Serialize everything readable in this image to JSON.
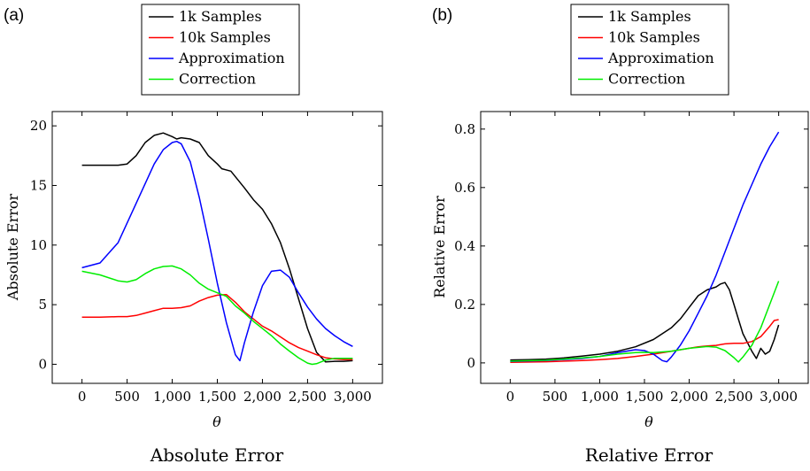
{
  "chart_data": [
    {
      "panel_label": "(a)",
      "type": "line",
      "caption": "Absolute Error",
      "xlabel": "θ",
      "ylabel": "Absolute Error",
      "xlim": [
        -330,
        3330
      ],
      "ylim": [
        -1.6,
        21.2
      ],
      "xticks": [
        0,
        500,
        1000,
        1500,
        2000,
        2500,
        3000
      ],
      "xtick_labels": [
        "0",
        "500",
        "1,000",
        "1,500",
        "2,000",
        "2,500",
        "3,000"
      ],
      "yticks": [
        0,
        5,
        10,
        15,
        20
      ],
      "ytick_labels": [
        "0",
        "5",
        "10",
        "15",
        "20"
      ],
      "legend": "top-center",
      "grid": false,
      "series": [
        {
          "name": "1k Samples",
          "color": "#000000",
          "x": [
            0,
            200,
            400,
            500,
            600,
            700,
            800,
            900,
            1000,
            1050,
            1100,
            1200,
            1300,
            1400,
            1500,
            1550,
            1650,
            1800,
            1900,
            2000,
            2100,
            2200,
            2300,
            2400,
            2500,
            2600,
            2700,
            2800,
            2900,
            3000
          ],
          "y": [
            16.7,
            16.7,
            16.7,
            16.8,
            17.5,
            18.6,
            19.2,
            19.4,
            19.1,
            18.9,
            19.0,
            18.9,
            18.6,
            17.5,
            16.8,
            16.4,
            16.2,
            14.8,
            13.8,
            13.0,
            11.8,
            10.2,
            8.0,
            5.5,
            3.0,
            1.0,
            0.2,
            0.25,
            0.25,
            0.3
          ]
        },
        {
          "name": "10k Samples",
          "color": "#ff0000",
          "x": [
            0,
            200,
            400,
            500,
            600,
            700,
            800,
            900,
            1000,
            1100,
            1200,
            1300,
            1400,
            1500,
            1600,
            1700,
            1800,
            1900,
            2000,
            2100,
            2200,
            2300,
            2400,
            2500,
            2600,
            2700,
            2800,
            2900,
            3000
          ],
          "y": [
            3.95,
            3.95,
            4.0,
            4.0,
            4.1,
            4.3,
            4.5,
            4.7,
            4.7,
            4.75,
            4.9,
            5.3,
            5.6,
            5.8,
            5.85,
            5.2,
            4.4,
            3.8,
            3.2,
            2.8,
            2.3,
            1.8,
            1.4,
            1.1,
            0.8,
            0.55,
            0.45,
            0.4,
            0.4
          ]
        },
        {
          "name": "Approximation",
          "color": "#0000ff",
          "x": [
            0,
            200,
            400,
            600,
            800,
            900,
            1000,
            1050,
            1100,
            1200,
            1300,
            1400,
            1500,
            1600,
            1700,
            1750,
            1800,
            1900,
            2000,
            2100,
            2200,
            2300,
            2400,
            2500,
            2600,
            2700,
            2800,
            2900,
            3000
          ],
          "y": [
            8.1,
            8.5,
            10.2,
            13.5,
            16.8,
            18.0,
            18.6,
            18.7,
            18.5,
            17.0,
            14.0,
            10.5,
            6.8,
            3.5,
            0.8,
            0.3,
            1.8,
            4.4,
            6.6,
            7.8,
            7.9,
            7.3,
            6.0,
            4.8,
            3.8,
            3.0,
            2.4,
            1.9,
            1.5
          ]
        },
        {
          "name": "Correction",
          "color": "#00ee00",
          "x": [
            0,
            200,
            400,
            500,
            600,
            700,
            800,
            900,
            1000,
            1100,
            1200,
            1300,
            1400,
            1500,
            1600,
            1700,
            1800,
            1900,
            2000,
            2100,
            2200,
            2300,
            2400,
            2500,
            2550,
            2600,
            2700,
            2800,
            2900,
            3000
          ],
          "y": [
            7.8,
            7.5,
            7.0,
            6.9,
            7.1,
            7.6,
            8.0,
            8.2,
            8.25,
            8.0,
            7.5,
            6.8,
            6.3,
            6.0,
            5.7,
            4.9,
            4.3,
            3.6,
            3.0,
            2.4,
            1.7,
            1.1,
            0.55,
            0.1,
            0.0,
            0.05,
            0.35,
            0.5,
            0.5,
            0.5
          ]
        }
      ]
    },
    {
      "panel_label": "(b)",
      "type": "line",
      "caption": "Relative Error",
      "xlabel": "θ",
      "ylabel": "Relative Error",
      "xlim": [
        -330,
        3330
      ],
      "ylim": [
        -0.07,
        0.86
      ],
      "xticks": [
        0,
        500,
        1000,
        1500,
        2000,
        2500,
        3000
      ],
      "xtick_labels": [
        "0",
        "500",
        "1,000",
        "1,500",
        "2,000",
        "2,500",
        "3,000"
      ],
      "yticks": [
        0,
        0.2,
        0.4,
        0.6,
        0.8
      ],
      "ytick_labels": [
        "0",
        "0.2",
        "0.4",
        "0.6",
        "0.8"
      ],
      "legend": "top-center",
      "grid": false,
      "series": [
        {
          "name": "1k Samples",
          "color": "#000000",
          "x": [
            0,
            200,
            400,
            600,
            800,
            1000,
            1200,
            1400,
            1600,
            1800,
            1900,
            2000,
            2100,
            2200,
            2300,
            2350,
            2400,
            2450,
            2500,
            2550,
            2600,
            2650,
            2700,
            2750,
            2800,
            2850,
            2900,
            2950,
            3000
          ],
          "y": [
            0.01,
            0.011,
            0.013,
            0.017,
            0.023,
            0.03,
            0.04,
            0.055,
            0.08,
            0.12,
            0.15,
            0.19,
            0.23,
            0.25,
            0.26,
            0.27,
            0.275,
            0.25,
            0.2,
            0.15,
            0.1,
            0.07,
            0.04,
            0.015,
            0.05,
            0.03,
            0.04,
            0.08,
            0.13
          ]
        },
        {
          "name": "10k Samples",
          "color": "#ff0000",
          "x": [
            0,
            400,
            800,
            1000,
            1200,
            1400,
            1600,
            1800,
            2000,
            2100,
            2200,
            2300,
            2400,
            2500,
            2600,
            2700,
            2800,
            2900,
            2950,
            3000
          ],
          "y": [
            0.002,
            0.004,
            0.008,
            0.011,
            0.015,
            0.022,
            0.03,
            0.04,
            0.05,
            0.055,
            0.058,
            0.06,
            0.065,
            0.067,
            0.067,
            0.073,
            0.09,
            0.125,
            0.145,
            0.148
          ]
        },
        {
          "name": "Approximation",
          "color": "#0000ff",
          "x": [
            0,
            400,
            800,
            1000,
            1200,
            1400,
            1500,
            1600,
            1700,
            1750,
            1800,
            1900,
            2000,
            2100,
            2200,
            2300,
            2400,
            2500,
            2600,
            2700,
            2800,
            2900,
            3000
          ],
          "y": [
            0.005,
            0.008,
            0.015,
            0.022,
            0.035,
            0.045,
            0.042,
            0.03,
            0.008,
            0.004,
            0.02,
            0.06,
            0.11,
            0.17,
            0.23,
            0.3,
            0.38,
            0.46,
            0.54,
            0.61,
            0.68,
            0.74,
            0.79
          ]
        },
        {
          "name": "Correction",
          "color": "#00ee00",
          "x": [
            0,
            400,
            800,
            1000,
            1200,
            1400,
            1500,
            1600,
            1800,
            2000,
            2200,
            2300,
            2400,
            2500,
            2550,
            2600,
            2700,
            2800,
            2900,
            3000
          ],
          "y": [
            0.006,
            0.009,
            0.017,
            0.022,
            0.03,
            0.035,
            0.036,
            0.035,
            0.04,
            0.05,
            0.056,
            0.054,
            0.042,
            0.018,
            0.003,
            0.02,
            0.06,
            0.12,
            0.2,
            0.28
          ]
        }
      ]
    }
  ]
}
